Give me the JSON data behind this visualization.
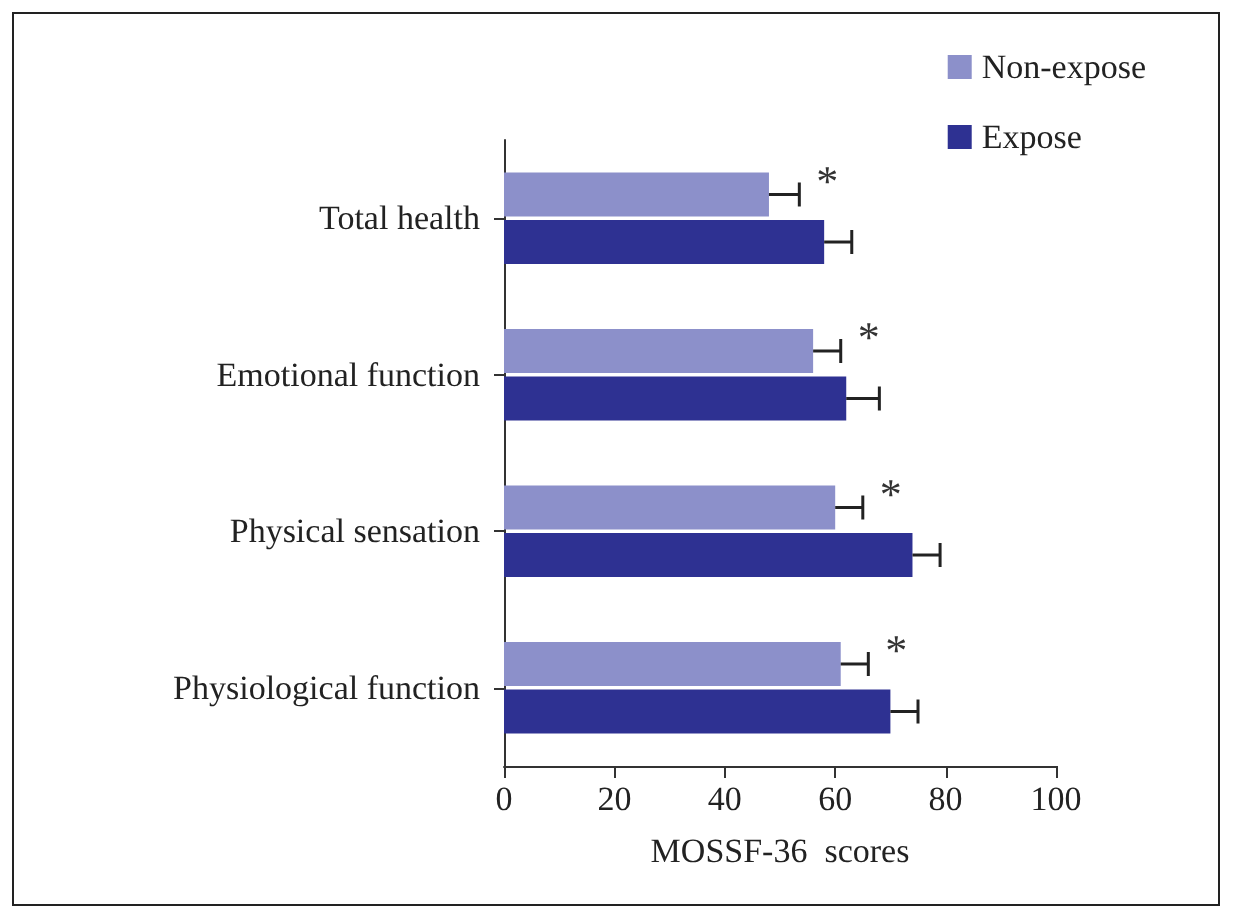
{
  "chart_data": {
    "type": "bar",
    "orientation": "horizontal",
    "xlabel": "MOSSF-36  scores",
    "categories": [
      "Total health",
      "Emotional function",
      "Physical sensation",
      "Physiological function"
    ],
    "series": [
      {
        "name": "Non-expose",
        "color": "#8c90ca",
        "values": [
          48,
          56,
          60,
          61
        ],
        "errors": [
          5.5,
          5,
          5,
          5
        ]
      },
      {
        "name": "Expose",
        "color": "#2e3192",
        "values": [
          58,
          62,
          74,
          70
        ],
        "errors": [
          5,
          6,
          5,
          5
        ]
      }
    ],
    "xlim": [
      0,
      100
    ],
    "xticks": [
      0,
      20,
      40,
      60,
      80,
      100
    ],
    "grid": false,
    "legend": "top right",
    "annotations": [
      {
        "text": "*",
        "x": 53.5,
        "y": "Total health"
      },
      {
        "text": "*",
        "x": 61,
        "y": "Emotional function"
      },
      {
        "text": "*",
        "x": 65,
        "y": "Physical sensation"
      },
      {
        "text": "*",
        "x": 66,
        "y": "Physiological function"
      }
    ]
  }
}
